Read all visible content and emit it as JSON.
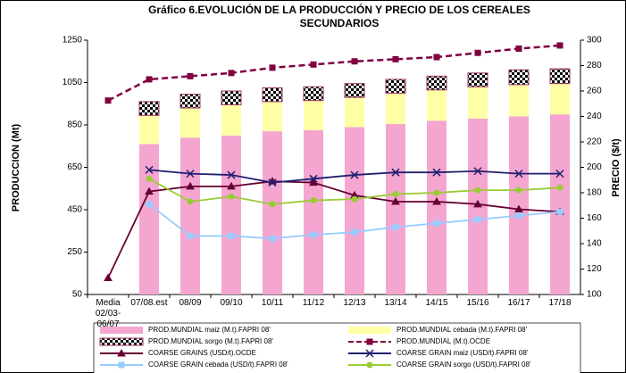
{
  "chart_data": {
    "type": "bar",
    "title": "Gráfico 6.EVOLUCIÓN DE LA PRODUCCIÓN Y PRECIO DE LOS CEREALES SECUNDARIOS",
    "ylabel": "PRODUCCION (Mt)",
    "y2label": "PRECIO ($/t)",
    "categories": [
      "Media 02/03-06/07",
      "07/08.est",
      "08/09",
      "09/10",
      "10/11",
      "11/12",
      "12/13",
      "13/14",
      "14/15",
      "15/16",
      "16/17",
      "17/18"
    ],
    "ylim": [
      50,
      1250
    ],
    "yticks": [
      50,
      250,
      450,
      650,
      850,
      1050,
      1250
    ],
    "y2lim": [
      100,
      300
    ],
    "y2ticks": [
      100,
      120,
      140,
      160,
      180,
      200,
      220,
      240,
      260,
      280,
      300
    ],
    "grid": false,
    "legend": "bottom",
    "series": [
      {
        "name": "PROD.MUNDIAL maiz (M.t).FAPRI 08'",
        "type": "bar",
        "color": "#f4a6d0",
        "values": [
          null,
          760,
          790,
          800,
          820,
          825,
          840,
          855,
          870,
          880,
          890,
          900
        ]
      },
      {
        "name": "PROD.MUNDIAL cebada (M.t).FAPRI 08'",
        "type": "bar",
        "color": "#ffffa6",
        "values": [
          null,
          135,
          140,
          145,
          140,
          140,
          140,
          145,
          145,
          150,
          150,
          145
        ]
      },
      {
        "name": "PROD.MUNDIAL sorgo (M.t).FAPRI 08'",
        "type": "bar",
        "color": "#993366",
        "pattern": "checkerboard",
        "values": [
          null,
          65,
          65,
          65,
          65,
          65,
          65,
          65,
          65,
          65,
          70,
          70
        ]
      },
      {
        "name": "PROD.MUNDIAL (M.t).OCDE",
        "type": "line",
        "color": "#800040",
        "dash": true,
        "marker": "square",
        "values": [
          965,
          1065,
          1080,
          1095,
          1120,
          1135,
          1150,
          1160,
          1170,
          1190,
          1210,
          1225
        ]
      },
      {
        "name": "COARSE GRAINS (USD/t).OCDE",
        "type": "line",
        "axis": "y2",
        "color": "#660033",
        "marker": "triangle",
        "values": [
          113,
          181,
          185,
          185,
          189,
          188,
          178,
          173,
          173,
          171,
          167,
          165
        ]
      },
      {
        "name": "COARSE GRAIN maiz (USD/t).FAPRI 08'",
        "type": "line",
        "axis": "y2",
        "color": "#1f1f6f",
        "marker": "x",
        "values": [
          null,
          198,
          195,
          194,
          188,
          191,
          194,
          196,
          196,
          197,
          195,
          195
        ]
      },
      {
        "name": "COARSE GRAIN cebada (USD/t).FAPRI 08'",
        "type": "line",
        "axis": "y2",
        "color": "#99ccff",
        "marker": "square",
        "values": [
          null,
          171,
          146,
          146,
          144,
          147,
          149,
          153,
          156,
          159,
          162,
          165
        ]
      },
      {
        "name": "COARSE GRAIN sorgo (USD/t).FAPRI 08'",
        "type": "line",
        "axis": "y2",
        "color": "#99cc33",
        "marker": "circle",
        "values": [
          null,
          191,
          173,
          177,
          171,
          174,
          175,
          179,
          180,
          182,
          182,
          184
        ]
      }
    ]
  }
}
